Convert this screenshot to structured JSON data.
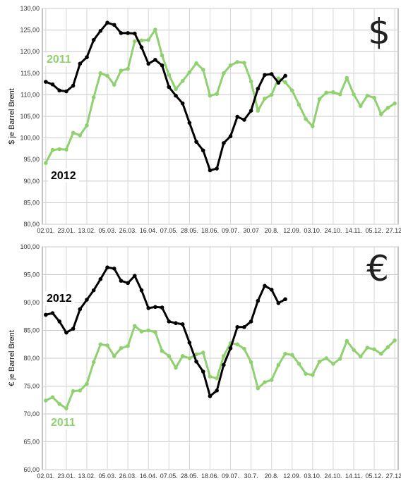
{
  "chart_data": [
    {
      "type": "line",
      "title": "",
      "ylabel": "$ je Barrel Brent",
      "ylim": [
        80,
        130
      ],
      "yticks": [
        "80,00",
        "85,00",
        "90,00",
        "95,00",
        "100,00",
        "105,00",
        "110,00",
        "115,00",
        "120,00",
        "125,00",
        "130,00"
      ],
      "xticks": [
        "02.01.",
        "23.01.",
        "13.02.",
        "05.03.",
        "26.03.",
        "16.04.",
        "07.05.",
        "28.05.",
        "18.06.",
        "09.07.",
        "30.07",
        "20.8.",
        "12.09.",
        "03.10.",
        "24.10.",
        "14.11.",
        "05.12.",
        "27.12."
      ],
      "currency_symbol": "$",
      "grid": true,
      "series": [
        {
          "name": "2011",
          "color": "#8fd16f",
          "values": [
            94.2,
            97.2,
            97.4,
            97.3,
            101.2,
            100.6,
            102.9,
            109.4,
            115.0,
            114.4,
            112.3,
            115.6,
            116.0,
            122.4,
            122.6,
            122.7,
            125.1,
            119.1,
            114.6,
            111.3,
            113.2,
            115.2,
            117.3,
            115.8,
            109.8,
            110.2,
            115.0,
            116.8,
            117.6,
            117.4,
            113.1,
            106.3,
            109.1,
            110.0,
            113.8,
            112.9,
            111.0,
            107.7,
            104.4,
            102.7,
            109.0,
            110.5,
            110.6,
            110.1,
            113.9,
            110.1,
            107.4,
            109.8,
            109.3,
            105.5,
            107.0,
            108.0
          ]
        },
        {
          "name": "2012",
          "color": "#000000",
          "values": [
            113.0,
            112.4,
            111.0,
            110.8,
            112.1,
            117.2,
            118.7,
            122.7,
            124.8,
            126.7,
            126.2,
            124.3,
            124.3,
            124.2,
            121.0,
            117.2,
            118.1,
            116.8,
            111.8,
            109.8,
            108.0,
            103.5,
            99.1,
            97.1,
            92.5,
            92.9,
            98.8,
            100.4,
            104.9,
            104.2,
            106.3,
            111.4,
            114.6,
            114.8,
            112.8,
            114.4
          ]
        }
      ]
    },
    {
      "type": "line",
      "title": "",
      "ylabel": "€ je Barrel Brent",
      "ylim": [
        60,
        100
      ],
      "yticks": [
        "60,00",
        "65,00",
        "70,00",
        "75,00",
        "80,00",
        "85,00",
        "90,00",
        "95,00",
        "100,00"
      ],
      "xticks": [
        "02.01.",
        "23.01.",
        "13.02.",
        "05.03.",
        "26.03.",
        "16.04.",
        "07.05.",
        "28.05.",
        "18.06.",
        "09.07.",
        "30.7.",
        "20.8.",
        "12.09.",
        "03.10.",
        "24.10.",
        "14.11.",
        "05.12.",
        "27.12."
      ],
      "currency_symbol": "€",
      "grid": true,
      "series": [
        {
          "name": "2011",
          "color": "#8fd16f",
          "values": [
            72.4,
            73.0,
            71.8,
            71.0,
            74.1,
            74.2,
            75.4,
            79.3,
            82.5,
            82.3,
            80.4,
            81.8,
            82.2,
            85.8,
            84.8,
            85.0,
            84.7,
            81.3,
            80.4,
            78.3,
            80.4,
            80.0,
            80.7,
            81.0,
            76.7,
            76.4,
            80.4,
            82.7,
            82.5,
            81.7,
            79.3,
            74.6,
            75.7,
            76.1,
            78.8,
            80.8,
            80.6,
            79.0,
            77.2,
            77.0,
            79.4,
            80.0,
            79.0,
            79.9,
            83.1,
            81.5,
            80.3,
            81.9,
            81.6,
            80.8,
            82.0,
            83.2
          ]
        },
        {
          "name": "2012",
          "color": "#000000",
          "values": [
            87.8,
            88.1,
            86.6,
            84.6,
            85.3,
            88.8,
            90.5,
            92.2,
            94.2,
            96.3,
            96.1,
            93.9,
            93.5,
            94.8,
            92.2,
            89.0,
            89.2,
            89.1,
            86.6,
            86.3,
            86.1,
            82.8,
            79.4,
            77.6,
            73.2,
            74.2,
            78.8,
            81.8,
            85.6,
            85.6,
            86.6,
            90.3,
            93.0,
            92.3,
            89.9,
            90.6
          ]
        }
      ]
    }
  ]
}
